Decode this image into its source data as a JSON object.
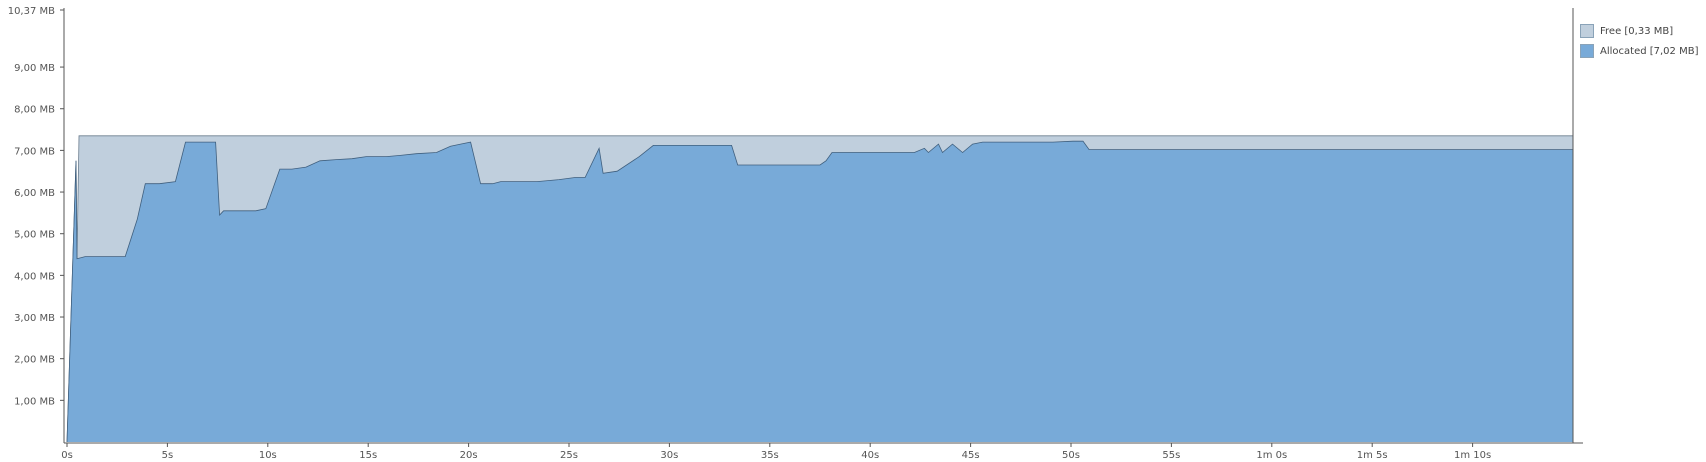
{
  "chart_data": {
    "type": "area",
    "title": "",
    "xlabel": "",
    "ylabel": "",
    "x_unit": "s",
    "xlim": [
      0,
      75
    ],
    "ylim": [
      0,
      10.37
    ],
    "grid": false,
    "legend_position": "top-right",
    "x_ticks": [
      {
        "value": 0,
        "label": "0s"
      },
      {
        "value": 5,
        "label": "5s"
      },
      {
        "value": 10,
        "label": "10s"
      },
      {
        "value": 15,
        "label": "15s"
      },
      {
        "value": 20,
        "label": "20s"
      },
      {
        "value": 25,
        "label": "25s"
      },
      {
        "value": 30,
        "label": "30s"
      },
      {
        "value": 35,
        "label": "35s"
      },
      {
        "value": 40,
        "label": "40s"
      },
      {
        "value": 45,
        "label": "45s"
      },
      {
        "value": 50,
        "label": "50s"
      },
      {
        "value": 55,
        "label": "55s"
      },
      {
        "value": 60,
        "label": "1m 0s"
      },
      {
        "value": 65,
        "label": "1m 5s"
      },
      {
        "value": 70,
        "label": "1m 10s"
      }
    ],
    "y_ticks": [
      {
        "value": 1,
        "label": "1,00 MB"
      },
      {
        "value": 2,
        "label": "2,00 MB"
      },
      {
        "value": 3,
        "label": "3,00 MB"
      },
      {
        "value": 4,
        "label": "4,00 MB"
      },
      {
        "value": 5,
        "label": "5,00 MB"
      },
      {
        "value": 6,
        "label": "6,00 MB"
      },
      {
        "value": 7,
        "label": "7,00 MB"
      },
      {
        "value": 8,
        "label": "8,00 MB"
      },
      {
        "value": 9,
        "label": "9,00 MB"
      },
      {
        "value": 10.37,
        "label": "10,37 MB"
      }
    ],
    "series": [
      {
        "name": "Free [0,33 MB]",
        "color": "#c0cfdd",
        "stroke": "#6b7d8e",
        "x": [
          0,
          0.45,
          0.5,
          0.6,
          75
        ],
        "y": [
          0,
          6.75,
          4.4,
          7.35,
          7.35
        ]
      },
      {
        "name": "Allocated [7,02 MB]",
        "color": "#78aad8",
        "stroke": "#3f5f7e",
        "x": [
          0,
          0.45,
          0.5,
          0.9,
          1.0,
          2.9,
          3.5,
          3.9,
          4.6,
          5.4,
          5.9,
          7.4,
          7.6,
          7.8,
          9.4,
          9.9,
          10.6,
          11.2,
          11.9,
          12.6,
          13.4,
          14.2,
          14.9,
          15.9,
          16.6,
          17.4,
          18.4,
          19.1,
          19.6,
          20.1,
          20.6,
          21.2,
          21.6,
          23.4,
          24.5,
          25.3,
          25.8,
          26.5,
          26.7,
          27.4,
          28.5,
          29.2,
          32.2,
          33.1,
          33.4,
          37.5,
          37.8,
          38.1,
          42.2,
          42.7,
          42.9,
          43.4,
          43.6,
          44.1,
          44.6,
          45.1,
          45.6,
          49.1,
          50.1,
          50.6,
          50.9,
          75
        ],
        "y": [
          0,
          6.75,
          4.4,
          4.45,
          4.45,
          4.45,
          5.35,
          6.2,
          6.2,
          6.25,
          7.2,
          7.2,
          5.45,
          5.55,
          5.55,
          5.6,
          6.55,
          6.55,
          6.6,
          6.75,
          6.78,
          6.8,
          6.85,
          6.85,
          6.88,
          6.92,
          6.95,
          7.1,
          7.15,
          7.2,
          6.2,
          6.2,
          6.25,
          6.25,
          6.3,
          6.35,
          6.35,
          7.05,
          6.45,
          6.5,
          6.85,
          7.12,
          7.12,
          7.12,
          6.65,
          6.65,
          6.75,
          6.95,
          6.95,
          7.05,
          6.95,
          7.15,
          6.95,
          7.15,
          6.95,
          7.15,
          7.2,
          7.2,
          7.22,
          7.22,
          7.02,
          7.02
        ]
      }
    ]
  },
  "legend": [
    {
      "label": "Free [0,33 MB]",
      "color": "#c0cfdd"
    },
    {
      "label": "Allocated [7,02 MB]",
      "color": "#78aad8"
    }
  ]
}
